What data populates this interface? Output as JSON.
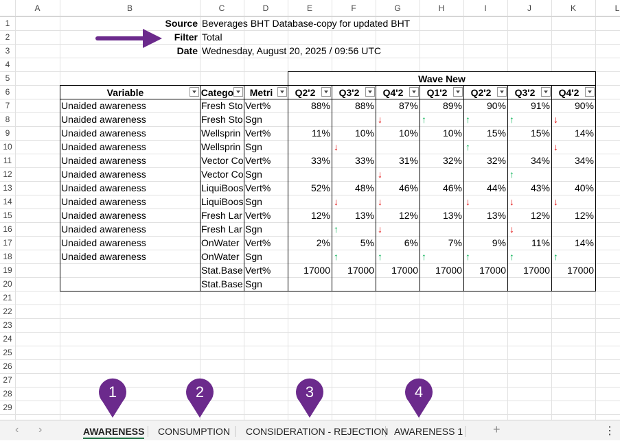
{
  "columns": [
    "A",
    "B",
    "C",
    "D",
    "E",
    "F",
    "G",
    "H",
    "I",
    "J",
    "K",
    "L"
  ],
  "row_numbers": [
    1,
    2,
    3,
    4,
    5,
    6,
    7,
    8,
    9,
    10,
    11,
    12,
    13,
    14,
    15,
    16,
    17,
    18,
    19,
    20,
    21,
    22,
    23,
    24,
    25,
    26,
    27,
    28,
    29
  ],
  "info": [
    {
      "label": "Source",
      "value": "Beverages BHT Database-copy for updated BHT"
    },
    {
      "label": "Filter",
      "value": "Total"
    },
    {
      "label": "Date",
      "value": "Wednesday, August 20, 2025 / 09:56 UTC"
    }
  ],
  "table": {
    "group_header": "Wave New",
    "headers": [
      "Variable",
      "Catego",
      "Metri",
      "Q2'2",
      "Q3'2",
      "Q4'2",
      "Q1'2",
      "Q2'2",
      "Q3'2",
      "Q4'2"
    ],
    "rows": [
      [
        "Unaided awareness",
        "Fresh Sto",
        "Vert%",
        "88%",
        "88%",
        "87%",
        "89%",
        "90%",
        "91%",
        "90%"
      ],
      [
        "Unaided awareness",
        "Fresh Sto",
        "Sgn",
        null,
        null,
        {
          "text": "↓",
          "color": "#e00000"
        },
        {
          "text": "↑",
          "color": "#00b050"
        },
        {
          "text": "↑",
          "color": "#00b050"
        },
        {
          "text": "↑",
          "color": "#00b050"
        },
        {
          "text": "↓",
          "color": "#e00000"
        }
      ],
      [
        "Unaided awareness",
        "Wellsprin",
        "Vert%",
        "11%",
        "10%",
        "10%",
        "10%",
        "15%",
        "15%",
        "14%"
      ],
      [
        "Unaided awareness",
        "Wellsprin",
        "Sgn",
        null,
        {
          "text": "↓",
          "color": "#e00000"
        },
        null,
        null,
        {
          "text": "↑",
          "color": "#00b050"
        },
        null,
        {
          "text": "↓",
          "color": "#e00000"
        }
      ],
      [
        "Unaided awareness",
        "Vector Co",
        "Vert%",
        "33%",
        "33%",
        "31%",
        "32%",
        "32%",
        "34%",
        "34%"
      ],
      [
        "Unaided awareness",
        "Vector Co",
        "Sgn",
        null,
        null,
        {
          "text": "↓",
          "color": "#e00000"
        },
        null,
        null,
        {
          "text": "↑",
          "color": "#00b050"
        },
        null
      ],
      [
        "Unaided awareness",
        "LiquiBoos",
        "Vert%",
        "52%",
        "48%",
        "46%",
        "46%",
        "44%",
        "43%",
        "40%"
      ],
      [
        "Unaided awareness",
        "LiquiBoos",
        "Sgn",
        null,
        {
          "text": "↓",
          "color": "#e00000"
        },
        {
          "text": "↓",
          "color": "#e00000"
        },
        null,
        {
          "text": "↓",
          "color": "#e00000"
        },
        {
          "text": "↓",
          "color": "#e00000"
        },
        {
          "text": "↓",
          "color": "#e00000"
        }
      ],
      [
        "Unaided awareness",
        "Fresh Lar",
        "Vert%",
        "12%",
        "13%",
        "12%",
        "13%",
        "13%",
        "12%",
        "12%"
      ],
      [
        "Unaided awareness",
        "Fresh Lar",
        "Sgn",
        null,
        {
          "text": "↑",
          "color": "#00b050"
        },
        {
          "text": "↓",
          "color": "#e00000"
        },
        null,
        null,
        {
          "text": "↓",
          "color": "#e00000"
        },
        null
      ],
      [
        "Unaided awareness",
        "OnWater",
        "Vert%",
        "2%",
        "5%",
        "6%",
        "7%",
        "9%",
        "11%",
        "14%"
      ],
      [
        "Unaided awareness",
        "OnWater",
        "Sgn",
        null,
        {
          "text": "↑",
          "color": "#00b050"
        },
        {
          "text": "↑",
          "color": "#00b050"
        },
        {
          "text": "↑",
          "color": "#00b050"
        },
        {
          "text": "↑",
          "color": "#00b050"
        },
        {
          "text": "↑",
          "color": "#00b050"
        },
        {
          "text": "↑",
          "color": "#00b050"
        }
      ],
      [
        null,
        "Stat.Base",
        "Vert%",
        "17000",
        "17000",
        "17000",
        "17000",
        "17000",
        "17000",
        "17000"
      ],
      [
        null,
        "Stat.Base",
        "Sgn",
        null,
        null,
        null,
        null,
        null,
        null,
        null
      ]
    ]
  },
  "markers": [
    "1",
    "2",
    "3",
    "4"
  ],
  "tabs": [
    {
      "label": "AWARENESS",
      "active": true
    },
    {
      "label": "CONSUMPTION",
      "active": false
    },
    {
      "label": "CONSIDERATION - REJECTION",
      "active": false
    },
    {
      "label": "AWARENESS 1",
      "active": false
    }
  ]
}
